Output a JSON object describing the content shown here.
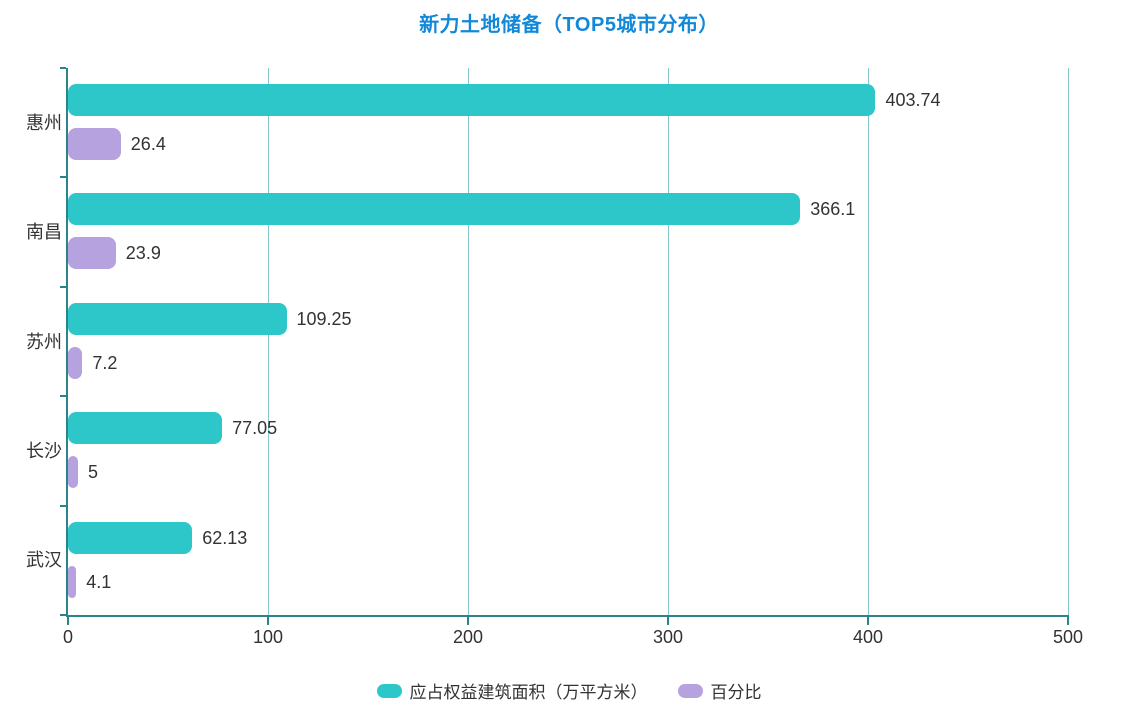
{
  "title": {
    "text": "新力土地储备（TOP5城市分布）"
  },
  "chart_data": {
    "type": "bar",
    "orientation": "horizontal",
    "title": "新力土地储备（TOP5城市分布）",
    "categories": [
      "惠州",
      "南昌",
      "苏州",
      "长沙",
      "武汉"
    ],
    "series": [
      {
        "name": "应占权益建筑面积（万平方米）",
        "color": "#2EC7C9",
        "values": [
          403.74,
          366.1,
          109.25,
          77.05,
          62.13
        ],
        "labels": [
          "403.74",
          "366.1",
          "109.25",
          "77.05",
          "62.13"
        ]
      },
      {
        "name": "百分比",
        "color": "#B6A2DE",
        "values": [
          26.4,
          23.9,
          7.2,
          5,
          4.1
        ],
        "labels": [
          "26.4",
          "23.9",
          "7.2",
          "5",
          "4.1"
        ]
      }
    ],
    "xlim": [
      0,
      500
    ],
    "x_ticks": [
      0,
      100,
      200,
      300,
      400,
      500
    ],
    "x_tick_labels": [
      "0",
      "100",
      "200",
      "300",
      "400",
      "500"
    ],
    "grid": true,
    "legend_position": "bottom"
  },
  "style": {
    "title_color": "#1288D8",
    "axis_color": "#2B848B",
    "grid_color": "#86C8CE",
    "label_color": "#333333",
    "background": "#FFFFFF"
  }
}
